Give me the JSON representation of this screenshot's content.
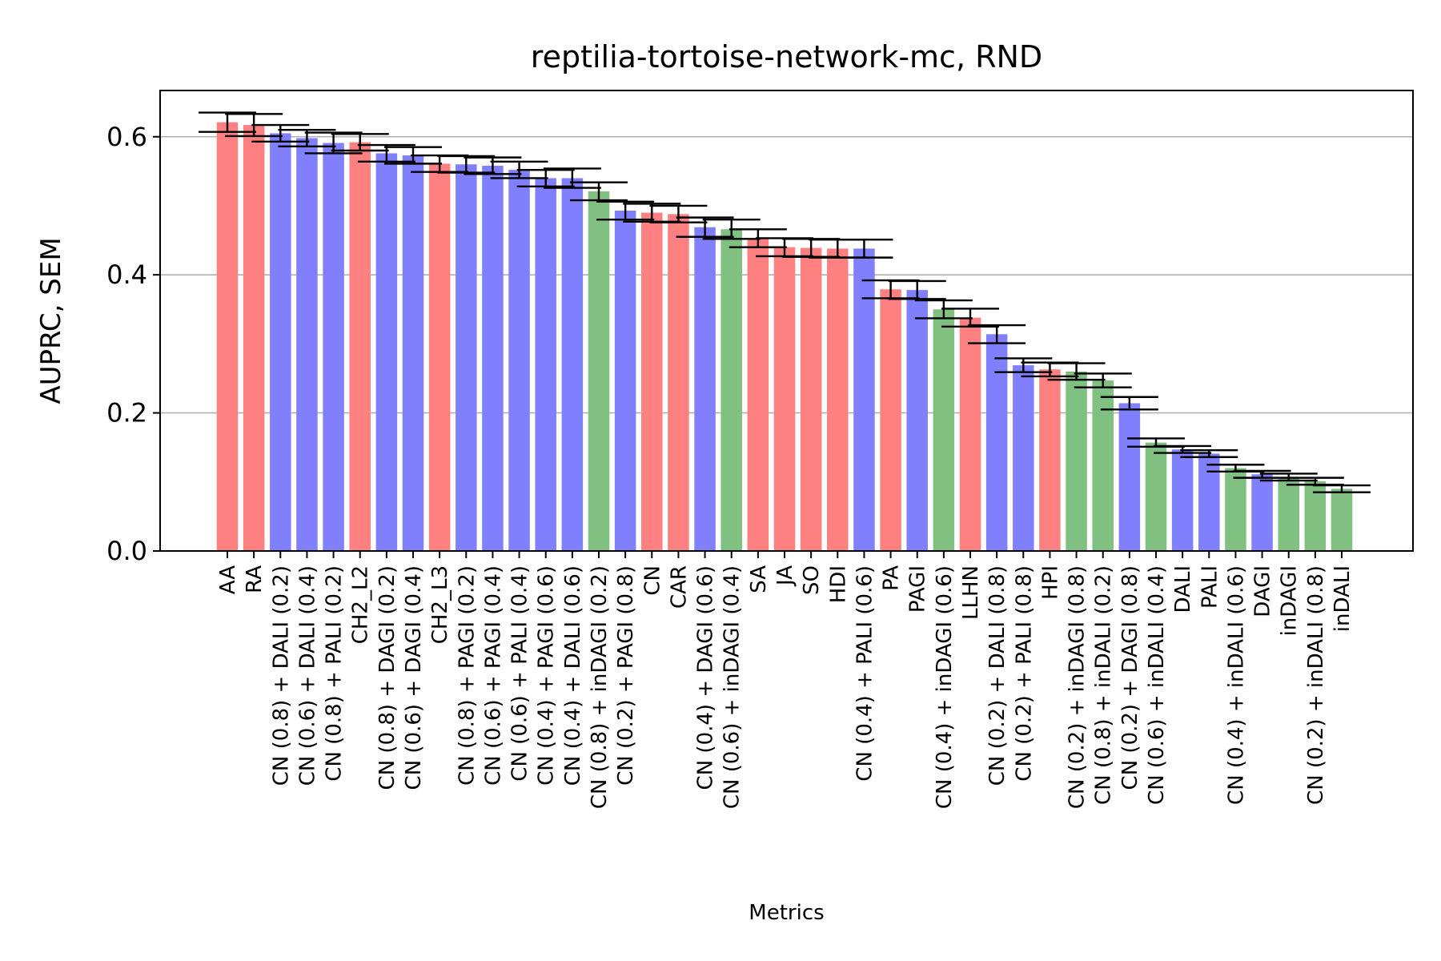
{
  "chart_data": {
    "type": "bar",
    "title": "reptilia-tortoise-network-mc, RND",
    "xlabel": "Metrics",
    "ylabel": "AUPRC, SEM",
    "ylim": [
      0.0,
      0.667
    ],
    "yticks": [
      "0.0",
      "0.2",
      "0.4",
      "0.6"
    ],
    "grid": "y",
    "colors": {
      "red": "#ff8080",
      "blue": "#8080ff",
      "green": "#80c080",
      "error": "#000000",
      "grid": "#b0b0b0"
    },
    "bars": [
      {
        "label": "AA",
        "value": 0.621,
        "err": 0.014,
        "color": "red"
      },
      {
        "label": "RA",
        "value": 0.617,
        "err": 0.016,
        "color": "red"
      },
      {
        "label": "CN (0.8) + DALI (0.2)",
        "value": 0.605,
        "err": 0.012,
        "color": "blue"
      },
      {
        "label": "CN (0.6) + DALI (0.4)",
        "value": 0.598,
        "err": 0.012,
        "color": "blue"
      },
      {
        "label": "CN (0.8) + PALI (0.2)",
        "value": 0.591,
        "err": 0.015,
        "color": "blue"
      },
      {
        "label": "CH2_L2",
        "value": 0.592,
        "err": 0.012,
        "color": "red"
      },
      {
        "label": "CN (0.8) + DAGI (0.2)",
        "value": 0.576,
        "err": 0.012,
        "color": "blue"
      },
      {
        "label": "CN (0.6) + DAGI (0.4)",
        "value": 0.573,
        "err": 0.012,
        "color": "blue"
      },
      {
        "label": "CH2_L3",
        "value": 0.561,
        "err": 0.012,
        "color": "red"
      },
      {
        "label": "CN (0.8) + PAGI (0.2)",
        "value": 0.56,
        "err": 0.012,
        "color": "blue"
      },
      {
        "label": "CN (0.6) + PAGI (0.4)",
        "value": 0.558,
        "err": 0.012,
        "color": "blue"
      },
      {
        "label": "CN (0.6) + PALI (0.4)",
        "value": 0.552,
        "err": 0.012,
        "color": "blue"
      },
      {
        "label": "CN (0.4) + PAGI (0.6)",
        "value": 0.54,
        "err": 0.012,
        "color": "blue"
      },
      {
        "label": "CN (0.4) + DALI (0.6)",
        "value": 0.54,
        "err": 0.014,
        "color": "blue"
      },
      {
        "label": "CN (0.8) + inDAGI (0.2)",
        "value": 0.521,
        "err": 0.013,
        "color": "green"
      },
      {
        "label": "CN (0.2) + PAGI (0.8)",
        "value": 0.493,
        "err": 0.013,
        "color": "blue"
      },
      {
        "label": "CN",
        "value": 0.49,
        "err": 0.013,
        "color": "red"
      },
      {
        "label": "CAR",
        "value": 0.488,
        "err": 0.012,
        "color": "red"
      },
      {
        "label": "CN (0.4) + DAGI (0.6)",
        "value": 0.469,
        "err": 0.014,
        "color": "blue"
      },
      {
        "label": "CN (0.6) + inDAGI (0.4)",
        "value": 0.466,
        "err": 0.014,
        "color": "green"
      },
      {
        "label": "SA",
        "value": 0.453,
        "err": 0.013,
        "color": "red"
      },
      {
        "label": "JA",
        "value": 0.44,
        "err": 0.013,
        "color": "red"
      },
      {
        "label": "SO",
        "value": 0.439,
        "err": 0.013,
        "color": "red"
      },
      {
        "label": "HDI",
        "value": 0.438,
        "err": 0.013,
        "color": "red"
      },
      {
        "label": "CN (0.4) + PALI (0.6)",
        "value": 0.438,
        "err": 0.013,
        "color": "blue"
      },
      {
        "label": "PA",
        "value": 0.379,
        "err": 0.013,
        "color": "red"
      },
      {
        "label": "PAGI",
        "value": 0.378,
        "err": 0.013,
        "color": "blue"
      },
      {
        "label": "CN (0.4) + inDAGI (0.6)",
        "value": 0.35,
        "err": 0.013,
        "color": "green"
      },
      {
        "label": "LLHN",
        "value": 0.338,
        "err": 0.013,
        "color": "red"
      },
      {
        "label": "CN (0.2) + DALI (0.8)",
        "value": 0.314,
        "err": 0.013,
        "color": "blue"
      },
      {
        "label": "CN (0.2) + PALI (0.8)",
        "value": 0.269,
        "err": 0.01,
        "color": "blue"
      },
      {
        "label": "HPI",
        "value": 0.263,
        "err": 0.01,
        "color": "red"
      },
      {
        "label": "CN (0.2) + inDAGI (0.8)",
        "value": 0.26,
        "err": 0.012,
        "color": "green"
      },
      {
        "label": "CN (0.8) + inDALI (0.2)",
        "value": 0.247,
        "err": 0.01,
        "color": "green"
      },
      {
        "label": "CN (0.2) + DAGI (0.8)",
        "value": 0.214,
        "err": 0.009,
        "color": "blue"
      },
      {
        "label": "CN (0.6) + inDALI (0.4)",
        "value": 0.157,
        "err": 0.006,
        "color": "green"
      },
      {
        "label": "DALI",
        "value": 0.147,
        "err": 0.005,
        "color": "blue"
      },
      {
        "label": "PALI",
        "value": 0.141,
        "err": 0.005,
        "color": "blue"
      },
      {
        "label": "CN (0.4) + inDALI (0.6)",
        "value": 0.12,
        "err": 0.005,
        "color": "green"
      },
      {
        "label": "DAGI",
        "value": 0.111,
        "err": 0.005,
        "color": "blue"
      },
      {
        "label": "inDAGI",
        "value": 0.107,
        "err": 0.005,
        "color": "green"
      },
      {
        "label": "CN (0.2) + inDALI (0.8)",
        "value": 0.101,
        "err": 0.005,
        "color": "green"
      },
      {
        "label": "inDALI",
        "value": 0.09,
        "err": 0.005,
        "color": "green"
      }
    ]
  }
}
